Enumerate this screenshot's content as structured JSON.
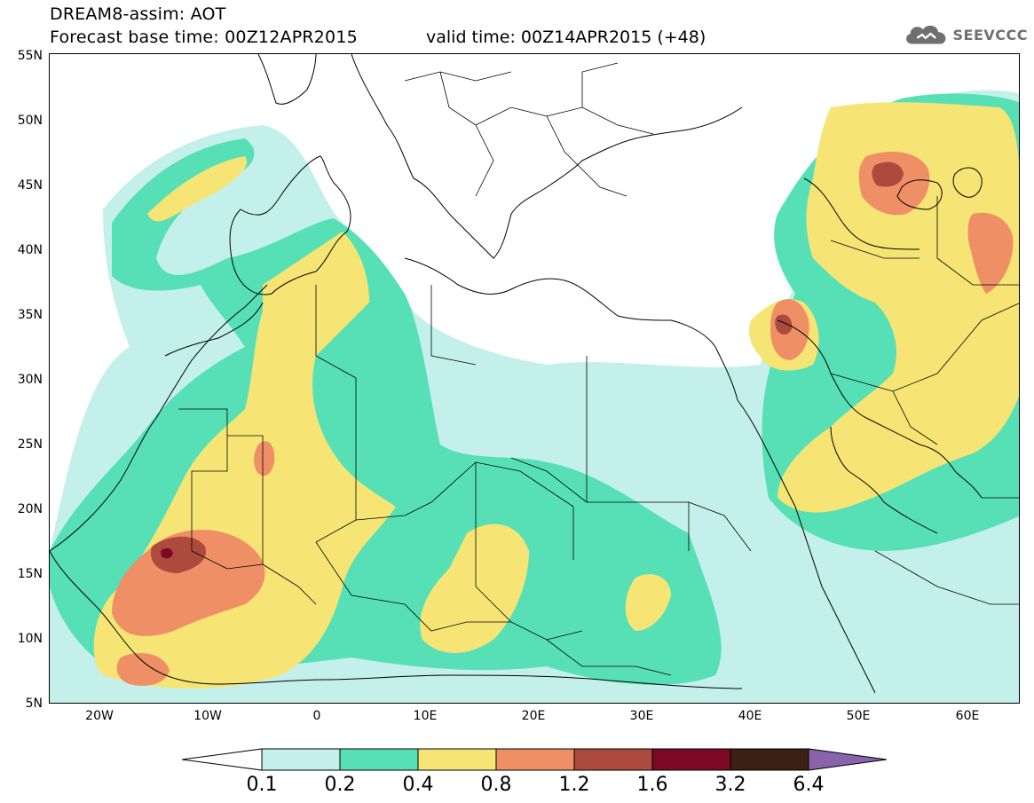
{
  "header": {
    "title_line1": "DREAM8-assim: AOT",
    "title_line2": "Forecast base time: 00Z12APR2015",
    "valid_time": "valid time: 00Z14APR2015 (+48)"
  },
  "logo": {
    "text": "SEEVCCC",
    "icon": "cloud-icon"
  },
  "axes": {
    "lat_labels": [
      "55N",
      "50N",
      "45N",
      "40N",
      "35N",
      "30N",
      "25N",
      "20N",
      "15N",
      "10N",
      "5N"
    ],
    "lon_labels": [
      "20W",
      "10W",
      "0",
      "10E",
      "20E",
      "30E",
      "40E",
      "50E",
      "60E"
    ],
    "lat_range": [
      5,
      55
    ],
    "lon_range": [
      -25,
      65
    ]
  },
  "colorbar": {
    "labels": [
      "0.1",
      "0.2",
      "0.4",
      "0.8",
      "1.2",
      "1.6",
      "3.2",
      "6.4"
    ],
    "colors": [
      "#ffffff",
      "#c4f0eb",
      "#57e0b5",
      "#f6e575",
      "#ee8f65",
      "#ac4b3d",
      "#7d0825",
      "#3a2114",
      "#8a64ab"
    ]
  },
  "colors": {
    "background": "#ffffff",
    "border": "#000000",
    "borders_lines": "#000000"
  }
}
